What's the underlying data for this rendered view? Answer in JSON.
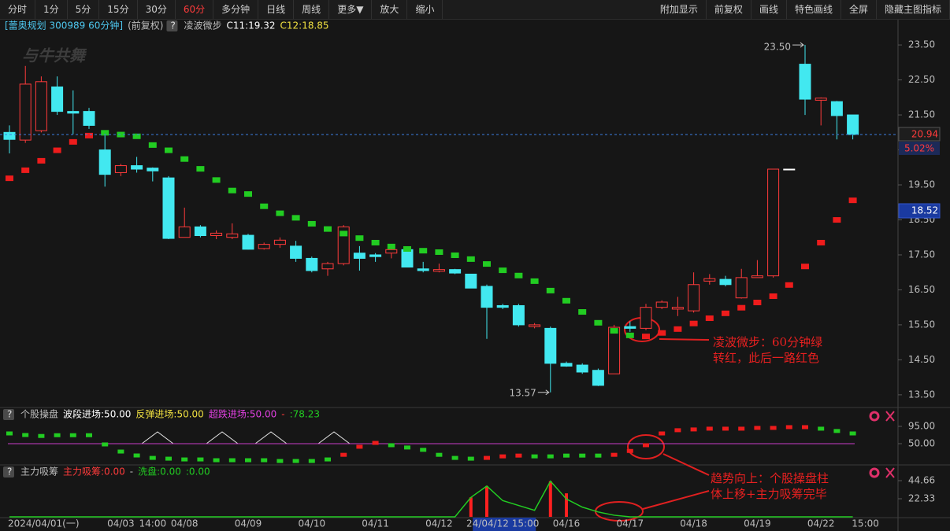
{
  "toolbar": {
    "left": [
      "分时",
      "1分",
      "5分",
      "15分",
      "30分",
      "60分",
      "多分钟",
      "日线",
      "周线",
      "更多▼",
      "放大",
      "缩小"
    ],
    "right": [
      "附加显示",
      "前复权",
      "画线",
      "特色画线",
      "全屏",
      "隐藏主图指标"
    ],
    "active": 5
  },
  "help_icon": "?",
  "watermark": "与牛共舞",
  "chart_data": [
    {
      "type": "candlestick",
      "title": "[蕾奥规划 300989 60分钟]",
      "subtitle": "(前复权)",
      "indicator": "凌波微步",
      "legend_values": [
        "C11:19.32",
        "C12:18.85"
      ],
      "legend_colors": [
        "#ffffff",
        "#f0e040"
      ],
      "categories": [
        "2024/04/01(一)",
        null,
        null,
        null,
        null,
        null,
        null,
        "04/03",
        null,
        "14:00",
        null,
        "04/08",
        null,
        null,
        null,
        "04/09",
        null,
        null,
        null,
        "04/10",
        null,
        null,
        null,
        "04/11",
        null,
        null,
        null,
        "04/12",
        null,
        null,
        null,
        "24/04/12 15:00",
        null,
        null,
        null,
        "04/16",
        null,
        null,
        null,
        "04/17",
        null,
        null,
        null,
        "04/18",
        null,
        null,
        null,
        "04/19",
        null,
        null,
        null,
        "04/22",
        null,
        "15:00"
      ],
      "open": [
        21.0,
        20.78,
        21.05,
        22.3,
        21.6,
        21.6,
        20.5,
        19.85,
        20.05,
        19.98,
        19.7,
        18.0,
        18.3,
        18.05,
        18.0,
        18.06,
        17.68,
        17.8,
        17.75,
        17.4,
        17.1,
        17.25,
        17.55,
        17.5,
        17.55,
        17.65,
        17.1,
        17.03,
        17.08,
        16.95,
        16.6,
        16.05,
        16.05,
        15.45,
        15.4,
        14.4,
        14.35,
        14.2,
        14.1,
        15.45,
        15.4,
        16.0,
        15.95,
        15.9,
        16.75,
        16.8,
        16.27,
        16.85,
        16.9,
        19.95,
        22.95,
        21.92,
        21.88,
        21.5
      ],
      "high": [
        21.2,
        22.9,
        22.6,
        22.6,
        22.2,
        21.7,
        21.0,
        20.1,
        20.3,
        20.0,
        19.75,
        18.85,
        18.35,
        18.2,
        18.4,
        18.1,
        17.85,
        18.0,
        17.9,
        17.45,
        17.3,
        18.35,
        17.75,
        17.55,
        17.7,
        17.7,
        17.3,
        17.25,
        17.1,
        16.95,
        16.65,
        16.1,
        16.1,
        15.55,
        15.45,
        14.45,
        14.4,
        14.25,
        15.5,
        15.6,
        16.1,
        16.2,
        16.3,
        17.0,
        16.95,
        16.9,
        17.1,
        17.35,
        19.95,
        19.95,
        23.5,
        22.0,
        21.9,
        21.5
      ],
      "low": [
        20.4,
        20.7,
        21.0,
        21.5,
        20.95,
        21.1,
        19.45,
        19.75,
        19.85,
        19.6,
        17.95,
        18.0,
        18.0,
        17.95,
        17.95,
        17.65,
        17.65,
        17.7,
        17.3,
        17.0,
        16.9,
        17.2,
        17.05,
        17.3,
        17.4,
        17.15,
        17.0,
        17.0,
        16.95,
        16.55,
        15.1,
        15.95,
        15.45,
        15.4,
        13.57,
        14.3,
        14.1,
        13.75,
        14.1,
        15.3,
        15.35,
        15.95,
        15.75,
        15.85,
        16.65,
        16.6,
        16.25,
        16.85,
        16.85,
        19.95,
        21.5,
        21.2,
        20.8,
        20.8
      ],
      "close": [
        20.8,
        22.38,
        22.45,
        21.6,
        21.55,
        21.2,
        19.8,
        20.05,
        19.95,
        19.9,
        17.97,
        18.3,
        18.05,
        18.12,
        18.1,
        17.66,
        17.8,
        17.92,
        17.4,
        17.05,
        17.25,
        18.3,
        17.4,
        17.45,
        17.65,
        17.15,
        17.05,
        17.08,
        16.98,
        16.55,
        16.0,
        16.0,
        15.5,
        15.5,
        14.4,
        14.32,
        14.15,
        13.77,
        15.43,
        15.4,
        16.0,
        16.15,
        16.0,
        16.65,
        16.82,
        16.65,
        16.85,
        16.9,
        19.95,
        19.95,
        21.95,
        21.98,
        21.48,
        20.94
      ],
      "up_color": "#ff3b3b",
      "down_color": "#42e8f0",
      "flat_color": "#ffffff",
      "series": [
        {
          "color": "#22cc22",
          "values": [
            null,
            null,
            null,
            null,
            null,
            null,
            21.0,
            20.95,
            20.9,
            20.65,
            20.5,
            20.25,
            19.97,
            19.65,
            19.35,
            19.25,
            18.9,
            18.7,
            18.57,
            18.4,
            18.25,
            18.12,
            17.99,
            17.86,
            17.75,
            17.68,
            17.63,
            17.59,
            17.5,
            17.39,
            17.25,
            17.07,
            16.92,
            16.76,
            16.49,
            16.2,
            15.88,
            15.57,
            15.34,
            15.21,
            null,
            null,
            null,
            null,
            null,
            null,
            null,
            null,
            null,
            null,
            null,
            null,
            null,
            null
          ]
        },
        {
          "color": "#ee1c1c",
          "values": [
            19.7,
            19.93,
            20.2,
            20.5,
            20.74,
            20.92,
            null,
            null,
            null,
            null,
            null,
            null,
            null,
            null,
            null,
            null,
            null,
            null,
            null,
            null,
            null,
            null,
            null,
            null,
            null,
            null,
            null,
            null,
            null,
            null,
            null,
            null,
            null,
            null,
            null,
            null,
            null,
            null,
            null,
            null,
            15.18,
            15.28,
            15.39,
            15.55,
            15.7,
            15.84,
            16.0,
            16.15,
            16.33,
            16.65,
            17.18,
            17.86,
            18.51,
            19.07
          ]
        }
      ],
      "ylim": [
        13.16,
        23.84
      ],
      "yticks": [
        {
          "value": 23.5,
          "label": "23.50"
        },
        {
          "value": 22.5,
          "label": "22.50"
        },
        {
          "value": 21.5,
          "label": "21.50"
        },
        {
          "value": 20.5,
          "label": "20.50"
        },
        {
          "value": 19.5,
          "label": "19.50"
        },
        {
          "value": 18.5,
          "label": "18.50"
        },
        {
          "value": 17.5,
          "label": "17.50"
        },
        {
          "value": 16.5,
          "label": "16.50"
        },
        {
          "value": 15.5,
          "label": "15.50"
        },
        {
          "value": 14.5,
          "label": "14.50"
        },
        {
          "value": 13.5,
          "label": "13.50"
        }
      ],
      "last_price": {
        "value": 20.94,
        "label": "20.94"
      },
      "change_label": "5.02%",
      "cursor_label": "18.52",
      "annotations": {
        "high_label": "23.50",
        "low_label": "13.57",
        "note": [
          "凌波微步：60分钟绿",
          "转红，此后一路红色"
        ]
      }
    },
    {
      "type": "dot",
      "title": "个股操盘",
      "legend_values": [
        "波段进场:50.00",
        "反弹进场:50.00",
        "超跌进场:50.00",
        "-",
        ":78.23"
      ],
      "legend_colors": [
        "#ffffff",
        "#f0e040",
        "#e040e0",
        "#ff3b3b",
        "#22cc22"
      ],
      "series": [
        {
          "color": "#22cc22",
          "values": [
            76.6,
            72.5,
            70,
            72,
            72,
            72,
            48,
            29.5,
            19.3,
            13,
            11,
            9,
            9,
            7,
            7,
            7,
            7,
            5,
            5,
            5,
            9,
            null,
            null,
            null,
            46,
            40,
            34,
            21,
            13,
            11,
            null,
            null,
            null,
            17,
            17,
            19,
            19,
            19,
            null,
            null,
            null,
            null,
            null,
            null,
            null,
            null,
            null,
            null,
            null,
            null,
            null,
            89,
            83,
            76.6
          ]
        },
        {
          "color": "#ee1c1c",
          "values": [
            null,
            null,
            null,
            null,
            null,
            null,
            null,
            null,
            null,
            null,
            null,
            null,
            null,
            null,
            null,
            null,
            null,
            null,
            null,
            null,
            null,
            21,
            42,
            52,
            null,
            null,
            null,
            null,
            null,
            null,
            13,
            17,
            19,
            null,
            null,
            null,
            null,
            null,
            21,
            31,
            46,
            76.6,
            85,
            87,
            89,
            89,
            89,
            91,
            91,
            93,
            93,
            null,
            null,
            null
          ]
        }
      ],
      "ylim": [
        -3.2,
        109.3
      ],
      "yticks": [
        {
          "value": 95,
          "label": "95.00"
        },
        {
          "value": 50,
          "label": "50.00"
        }
      ],
      "reference_line": 50,
      "reference_color": "#c83cc8",
      "annotations": {
        "note": [
          "趋势向上：个股操盘柱",
          "体上移+主力吸筹完毕"
        ]
      }
    },
    {
      "type": "bar_line",
      "title": "主力吸筹",
      "legend_values": [
        "主力吸筹:0.00",
        "-",
        "洗盘:0.00",
        ":0.00"
      ],
      "legend_colors": [
        "#ff3b3b",
        "#bdbdbd",
        "#22cc22",
        "#22cc22"
      ],
      "series": [
        {
          "color": "#ff2020",
          "values": [
            0,
            0,
            0,
            0,
            0,
            0,
            0,
            0,
            0,
            0,
            0,
            0,
            0,
            0,
            0,
            0,
            0,
            0,
            0,
            0,
            0,
            0,
            0,
            0,
            0,
            0,
            0,
            0,
            0,
            24,
            38,
            0,
            0,
            0,
            44,
            29,
            0,
            0,
            0,
            0,
            0,
            0,
            0,
            0,
            0,
            0,
            0,
            0,
            0,
            0,
            0,
            0,
            0,
            0
          ]
        },
        {
          "color": "#22cc22",
          "values": [
            0,
            0,
            0,
            0,
            0,
            0,
            0,
            0,
            0,
            0,
            0,
            0,
            0,
            0,
            0,
            0,
            0,
            0,
            0,
            0,
            0,
            0,
            0,
            0,
            0,
            0,
            0,
            0,
            0,
            24,
            38,
            20,
            14,
            8,
            44,
            22,
            12,
            6,
            2,
            0,
            0,
            0,
            0,
            0,
            0,
            0,
            0,
            0,
            0,
            0,
            0,
            0,
            0,
            0
          ]
        }
      ],
      "ylim": [
        0,
        49.5
      ],
      "yticks": [
        {
          "value": 44.66,
          "label": "44.66"
        },
        {
          "value": 22.33,
          "label": "22.33"
        }
      ]
    }
  ]
}
